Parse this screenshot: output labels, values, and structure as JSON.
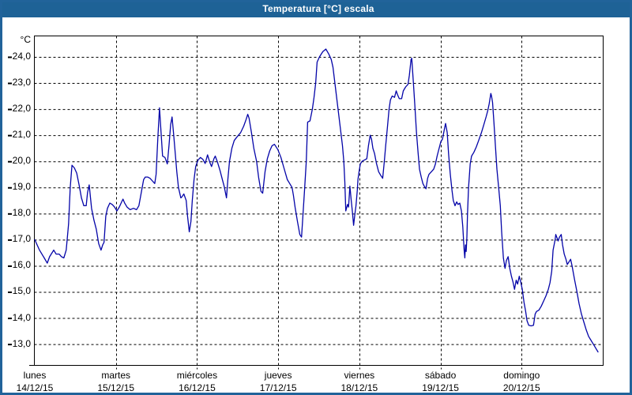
{
  "window": {
    "title": "Temperatura [°C] escala",
    "title_bar_color": "#1e6296",
    "border_color": "#21639a",
    "background": "#ffffff"
  },
  "chart_data": {
    "type": "line",
    "title": "Temperatura [°C] escala",
    "ylabel": "°C",
    "xlabel": "",
    "grid": "dashed",
    "legend": "none",
    "ylim": [
      12.2,
      24.8
    ],
    "xlim_hours": [
      0,
      168
    ],
    "yticks": [
      {
        "value": 24,
        "label": "24,0"
      },
      {
        "value": 23,
        "label": "23,0"
      },
      {
        "value": 22,
        "label": "22,0"
      },
      {
        "value": 21,
        "label": "21,0"
      },
      {
        "value": 20,
        "label": "20,0"
      },
      {
        "value": 19,
        "label": "19,0"
      },
      {
        "value": 18,
        "label": "18,0"
      },
      {
        "value": 17,
        "label": "17,0"
      },
      {
        "value": 16,
        "label": "16,0"
      },
      {
        "value": 15,
        "label": "15,0"
      },
      {
        "value": 14,
        "label": "14,0"
      },
      {
        "value": 13,
        "label": "13,0"
      }
    ],
    "day_boundaries_hours": [
      24,
      48,
      72,
      96,
      120,
      144
    ],
    "x_axis_days": [
      {
        "name": "lunes",
        "date": "14/12/15"
      },
      {
        "name": "martes",
        "date": "15/12/15"
      },
      {
        "name": "miércoles",
        "date": "16/12/15"
      },
      {
        "name": "jueves",
        "date": "17/12/15"
      },
      {
        "name": "viernes",
        "date": "18/12/15"
      },
      {
        "name": "sábado",
        "date": "19/12/15"
      },
      {
        "name": "domingo",
        "date": "20/12/15"
      }
    ],
    "series": [
      {
        "name": "Temperatura",
        "unit": "°C",
        "color": "#0404a8",
        "points_hours_temp": [
          [
            0.0,
            17.0
          ],
          [
            1.4,
            16.6
          ],
          [
            2.1,
            16.45
          ],
          [
            2.8,
            16.3
          ],
          [
            3.7,
            16.1
          ],
          [
            4.4,
            16.35
          ],
          [
            5.6,
            16.6
          ],
          [
            6.3,
            16.45
          ],
          [
            7.2,
            16.45
          ],
          [
            7.9,
            16.35
          ],
          [
            8.6,
            16.3
          ],
          [
            9.3,
            16.6
          ],
          [
            10.0,
            17.6
          ],
          [
            10.5,
            19.0
          ],
          [
            11.0,
            19.85
          ],
          [
            11.7,
            19.75
          ],
          [
            12.4,
            19.55
          ],
          [
            13.1,
            19.1
          ],
          [
            13.8,
            18.6
          ],
          [
            14.5,
            18.3
          ],
          [
            15.2,
            18.3
          ],
          [
            15.6,
            18.8
          ],
          [
            16.1,
            19.1
          ],
          [
            16.8,
            18.2
          ],
          [
            17.5,
            17.75
          ],
          [
            18.2,
            17.4
          ],
          [
            18.9,
            16.85
          ],
          [
            19.6,
            16.6
          ],
          [
            20.1,
            16.8
          ],
          [
            20.5,
            16.9
          ],
          [
            21.0,
            17.9
          ],
          [
            21.5,
            18.2
          ],
          [
            22.2,
            18.4
          ],
          [
            22.9,
            18.35
          ],
          [
            23.6,
            18.25
          ],
          [
            24.3,
            18.1
          ],
          [
            25.0,
            18.25
          ],
          [
            25.7,
            18.45
          ],
          [
            26.1,
            18.55
          ],
          [
            26.6,
            18.4
          ],
          [
            27.3,
            18.25
          ],
          [
            28.2,
            18.15
          ],
          [
            29.2,
            18.2
          ],
          [
            30.1,
            18.15
          ],
          [
            30.8,
            18.3
          ],
          [
            31.5,
            18.8
          ],
          [
            32.2,
            19.3
          ],
          [
            32.7,
            19.4
          ],
          [
            33.4,
            19.4
          ],
          [
            34.1,
            19.35
          ],
          [
            34.8,
            19.25
          ],
          [
            35.5,
            19.15
          ],
          [
            35.9,
            19.5
          ],
          [
            36.4,
            20.9
          ],
          [
            36.9,
            22.05
          ],
          [
            37.4,
            21.0
          ],
          [
            37.8,
            20.2
          ],
          [
            38.5,
            20.15
          ],
          [
            39.2,
            19.9
          ],
          [
            39.7,
            20.6
          ],
          [
            40.2,
            21.4
          ],
          [
            40.6,
            21.7
          ],
          [
            41.1,
            21.0
          ],
          [
            41.6,
            20.25
          ],
          [
            42.0,
            19.6
          ],
          [
            42.5,
            19.0
          ],
          [
            43.2,
            18.6
          ],
          [
            43.6,
            18.65
          ],
          [
            44.1,
            18.75
          ],
          [
            44.8,
            18.5
          ],
          [
            45.2,
            17.9
          ],
          [
            45.7,
            17.3
          ],
          [
            46.2,
            17.7
          ],
          [
            46.6,
            18.5
          ],
          [
            47.1,
            19.3
          ],
          [
            47.6,
            19.8
          ],
          [
            48.3,
            20.05
          ],
          [
            49.0,
            20.15
          ],
          [
            49.7,
            20.08
          ],
          [
            50.4,
            19.92
          ],
          [
            51.1,
            20.25
          ],
          [
            51.8,
            19.95
          ],
          [
            52.3,
            19.8
          ],
          [
            53.0,
            20.1
          ],
          [
            53.4,
            20.2
          ],
          [
            54.1,
            19.95
          ],
          [
            54.8,
            19.65
          ],
          [
            55.5,
            19.3
          ],
          [
            56.0,
            19.05
          ],
          [
            56.7,
            18.6
          ],
          [
            57.1,
            19.3
          ],
          [
            57.6,
            20.0
          ],
          [
            58.3,
            20.5
          ],
          [
            59.0,
            20.8
          ],
          [
            59.9,
            20.95
          ],
          [
            60.9,
            21.1
          ],
          [
            61.8,
            21.35
          ],
          [
            62.5,
            21.6
          ],
          [
            63.0,
            21.8
          ],
          [
            63.4,
            21.65
          ],
          [
            64.1,
            21.1
          ],
          [
            64.8,
            20.5
          ],
          [
            65.6,
            20.0
          ],
          [
            66.2,
            19.4
          ],
          [
            66.9,
            18.85
          ],
          [
            67.4,
            18.78
          ],
          [
            68.1,
            19.6
          ],
          [
            68.8,
            20.1
          ],
          [
            69.5,
            20.4
          ],
          [
            70.2,
            20.6
          ],
          [
            70.9,
            20.65
          ],
          [
            71.9,
            20.45
          ],
          [
            72.8,
            20.15
          ],
          [
            73.7,
            19.75
          ],
          [
            74.7,
            19.3
          ],
          [
            75.4,
            19.15
          ],
          [
            76.1,
            19.0
          ],
          [
            76.5,
            18.7
          ],
          [
            77.0,
            18.25
          ],
          [
            77.7,
            17.7
          ],
          [
            78.4,
            17.2
          ],
          [
            78.9,
            17.1
          ],
          [
            79.3,
            17.9
          ],
          [
            79.8,
            18.9
          ],
          [
            80.3,
            20.0
          ],
          [
            80.7,
            21.5
          ],
          [
            81.4,
            21.55
          ],
          [
            82.1,
            22.0
          ],
          [
            82.6,
            22.45
          ],
          [
            83.1,
            23.0
          ],
          [
            83.5,
            23.8
          ],
          [
            84.2,
            24.0
          ],
          [
            85.2,
            24.2
          ],
          [
            86.1,
            24.3
          ],
          [
            87.0,
            24.1
          ],
          [
            87.7,
            23.9
          ],
          [
            88.2,
            23.6
          ],
          [
            88.9,
            22.85
          ],
          [
            89.6,
            22.1
          ],
          [
            90.3,
            21.35
          ],
          [
            91.0,
            20.6
          ],
          [
            91.4,
            20.0
          ],
          [
            91.7,
            19.2
          ],
          [
            92.0,
            18.1
          ],
          [
            92.5,
            18.35
          ],
          [
            92.8,
            18.25
          ],
          [
            93.2,
            19.05
          ],
          [
            93.6,
            18.5
          ],
          [
            94.0,
            18.0
          ],
          [
            94.3,
            17.55
          ],
          [
            94.7,
            18.0
          ],
          [
            95.0,
            18.3
          ],
          [
            95.4,
            18.9
          ],
          [
            95.6,
            19.3
          ],
          [
            95.8,
            19.5
          ],
          [
            96.3,
            19.9
          ],
          [
            96.8,
            20.0
          ],
          [
            97.5,
            20.05
          ],
          [
            98.2,
            20.1
          ],
          [
            98.7,
            20.6
          ],
          [
            99.2,
            21.0
          ],
          [
            99.6,
            20.85
          ],
          [
            100.0,
            20.5
          ],
          [
            100.5,
            20.3
          ],
          [
            101.0,
            19.95
          ],
          [
            101.7,
            19.6
          ],
          [
            102.4,
            19.45
          ],
          [
            102.9,
            19.35
          ],
          [
            103.4,
            20.0
          ],
          [
            103.8,
            20.6
          ],
          [
            104.3,
            21.3
          ],
          [
            104.8,
            22.0
          ],
          [
            105.2,
            22.35
          ],
          [
            105.7,
            22.5
          ],
          [
            106.4,
            22.45
          ],
          [
            106.9,
            22.7
          ],
          [
            107.3,
            22.55
          ],
          [
            107.8,
            22.4
          ],
          [
            108.5,
            22.4
          ],
          [
            109.0,
            22.7
          ],
          [
            109.7,
            22.85
          ],
          [
            110.4,
            22.95
          ],
          [
            110.8,
            23.3
          ],
          [
            111.3,
            23.9
          ],
          [
            111.5,
            23.95
          ],
          [
            112.0,
            23.0
          ],
          [
            112.4,
            22.2
          ],
          [
            112.9,
            21.1
          ],
          [
            113.4,
            20.3
          ],
          [
            113.8,
            19.7
          ],
          [
            114.3,
            19.4
          ],
          [
            114.8,
            19.15
          ],
          [
            115.2,
            19.05
          ],
          [
            115.7,
            18.95
          ],
          [
            116.2,
            19.35
          ],
          [
            116.6,
            19.5
          ],
          [
            117.3,
            19.6
          ],
          [
            118.0,
            19.7
          ],
          [
            118.5,
            19.9
          ],
          [
            119.0,
            20.2
          ],
          [
            119.4,
            20.4
          ],
          [
            120.1,
            20.75
          ],
          [
            120.6,
            20.85
          ],
          [
            121.1,
            21.2
          ],
          [
            121.5,
            21.45
          ],
          [
            122.0,
            21.1
          ],
          [
            122.4,
            20.3
          ],
          [
            122.9,
            19.5
          ],
          [
            123.4,
            18.9
          ],
          [
            123.8,
            18.5
          ],
          [
            124.3,
            18.3
          ],
          [
            124.8,
            18.45
          ],
          [
            125.2,
            18.35
          ],
          [
            125.7,
            18.4
          ],
          [
            126.2,
            18.1
          ],
          [
            126.6,
            17.5
          ],
          [
            127.0,
            16.6
          ],
          [
            127.2,
            16.3
          ],
          [
            127.4,
            16.8
          ],
          [
            127.6,
            16.55
          ],
          [
            127.8,
            17.1
          ],
          [
            128.0,
            18.0
          ],
          [
            128.3,
            19.0
          ],
          [
            128.8,
            19.9
          ],
          [
            129.2,
            20.2
          ],
          [
            129.9,
            20.35
          ],
          [
            130.6,
            20.55
          ],
          [
            131.3,
            20.8
          ],
          [
            132.1,
            21.1
          ],
          [
            132.8,
            21.4
          ],
          [
            133.5,
            21.7
          ],
          [
            134.0,
            21.95
          ],
          [
            134.4,
            22.2
          ],
          [
            134.9,
            22.6
          ],
          [
            135.1,
            22.5
          ],
          [
            135.4,
            22.25
          ],
          [
            135.8,
            21.5
          ],
          [
            136.3,
            20.5
          ],
          [
            136.7,
            19.7
          ],
          [
            137.2,
            19.0
          ],
          [
            137.7,
            18.3
          ],
          [
            138.1,
            17.3
          ],
          [
            138.6,
            16.3
          ],
          [
            139.1,
            15.9
          ],
          [
            139.5,
            16.2
          ],
          [
            140.0,
            16.35
          ],
          [
            140.5,
            15.9
          ],
          [
            141.0,
            15.6
          ],
          [
            141.4,
            15.4
          ],
          [
            141.9,
            15.1
          ],
          [
            142.4,
            15.45
          ],
          [
            142.8,
            15.3
          ],
          [
            143.3,
            15.6
          ],
          [
            143.7,
            15.4
          ],
          [
            144.2,
            15.1
          ],
          [
            144.7,
            14.6
          ],
          [
            145.2,
            14.25
          ],
          [
            145.6,
            13.9
          ],
          [
            146.1,
            13.72
          ],
          [
            146.8,
            13.7
          ],
          [
            147.5,
            13.72
          ],
          [
            148.0,
            14.15
          ],
          [
            148.4,
            14.25
          ],
          [
            149.1,
            14.3
          ],
          [
            149.8,
            14.45
          ],
          [
            150.5,
            14.65
          ],
          [
            151.2,
            14.85
          ],
          [
            151.9,
            15.1
          ],
          [
            152.4,
            15.35
          ],
          [
            152.9,
            15.8
          ],
          [
            153.3,
            16.6
          ],
          [
            153.9,
            17.0
          ],
          [
            154.1,
            17.2
          ],
          [
            154.8,
            16.95
          ],
          [
            155.2,
            17.1
          ],
          [
            155.7,
            17.2
          ],
          [
            156.1,
            16.8
          ],
          [
            156.6,
            16.45
          ],
          [
            157.1,
            16.25
          ],
          [
            157.5,
            16.05
          ],
          [
            158.0,
            16.15
          ],
          [
            158.5,
            16.25
          ],
          [
            158.9,
            16.0
          ],
          [
            159.6,
            15.5
          ],
          [
            160.3,
            15.05
          ],
          [
            161.0,
            14.55
          ],
          [
            161.7,
            14.15
          ],
          [
            162.4,
            13.85
          ],
          [
            163.1,
            13.55
          ],
          [
            163.8,
            13.3
          ],
          [
            164.5,
            13.15
          ],
          [
            165.2,
            13.0
          ],
          [
            165.9,
            12.85
          ],
          [
            166.6,
            12.7
          ]
        ]
      }
    ]
  }
}
